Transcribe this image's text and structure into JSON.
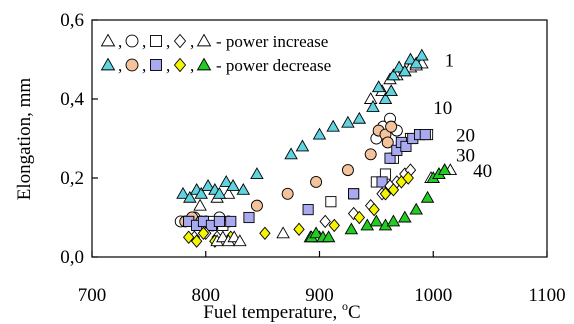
{
  "chart_data": {
    "type": "scatter",
    "title": "",
    "xlabel": "Fuel temperature, ",
    "xlabel_unit": "C",
    "xlabel_degree": "o",
    "ylabel": "Elongation, mm",
    "xlim": [
      700,
      1100
    ],
    "ylim": [
      0.0,
      0.6
    ],
    "x_ticks": [
      700,
      800,
      900,
      1000,
      1100
    ],
    "x_tick_labels": [
      "700",
      "800",
      "900",
      "1000",
      "1100"
    ],
    "y_ticks": [
      0.0,
      0.2,
      0.4,
      0.6
    ],
    "y_tick_labels": [
      "0,0",
      "0,2",
      "0,4",
      "0,6"
    ],
    "grid": false,
    "legend": {
      "placement": "top-left",
      "rows": [
        {
          "markers": [
            {
              "shape": "triangle",
              "fill": "#ffffff"
            },
            {
              "shape": "circle",
              "fill": "#ffffff"
            },
            {
              "shape": "square",
              "fill": "#ffffff"
            },
            {
              "shape": "diamond",
              "fill": "#ffffff"
            },
            {
              "shape": "triangle",
              "fill": "#ffffff"
            }
          ],
          "text": "- power increase"
        },
        {
          "markers": [
            {
              "shape": "triangle",
              "fill": "#5fd3e0"
            },
            {
              "shape": "circle",
              "fill": "#f5c39b"
            },
            {
              "shape": "square",
              "fill": "#a9a9f0"
            },
            {
              "shape": "diamond",
              "fill": "#f5f500"
            },
            {
              "shape": "triangle",
              "fill": "#22cc22"
            }
          ],
          "text": "- power decrease"
        }
      ],
      "separator": ","
    },
    "series": [
      {
        "name": "1",
        "shape": "triangle",
        "stroke": "#000000",
        "increase_fill": "#ffffff",
        "decrease_fill": "#5fd3e0",
        "increase": [
          [
            795,
            0.13
          ],
          [
            810,
            0.15
          ],
          [
            820,
            0.16
          ],
          [
            945,
            0.4
          ],
          [
            955,
            0.42
          ],
          [
            962,
            0.45
          ],
          [
            968,
            0.46
          ],
          [
            975,
            0.47
          ],
          [
            980,
            0.48
          ],
          [
            985,
            0.485
          ],
          [
            990,
            0.49
          ]
        ],
        "decrease": [
          [
            780,
            0.16
          ],
          [
            786,
            0.15
          ],
          [
            792,
            0.17
          ],
          [
            796,
            0.16
          ],
          [
            802,
            0.18
          ],
          [
            808,
            0.17
          ],
          [
            812,
            0.16
          ],
          [
            818,
            0.19
          ],
          [
            824,
            0.18
          ],
          [
            833,
            0.17
          ],
          [
            845,
            0.21
          ],
          [
            875,
            0.26
          ],
          [
            885,
            0.28
          ],
          [
            900,
            0.31
          ],
          [
            912,
            0.33
          ],
          [
            925,
            0.34
          ],
          [
            935,
            0.35
          ],
          [
            947,
            0.38
          ],
          [
            952,
            0.43
          ],
          [
            958,
            0.4
          ],
          [
            963,
            0.42
          ],
          [
            965,
            0.46
          ],
          [
            970,
            0.48
          ],
          [
            975,
            0.47
          ],
          [
            980,
            0.5
          ],
          [
            985,
            0.49
          ],
          [
            990,
            0.51
          ]
        ]
      },
      {
        "name": "10",
        "shape": "circle",
        "stroke": "#000000",
        "increase_fill": "#ffffff",
        "decrease_fill": "#f5c39b",
        "increase": [
          [
            778,
            0.09
          ],
          [
            790,
            0.1
          ],
          [
            800,
            0.09
          ],
          [
            812,
            0.1
          ],
          [
            950,
            0.3
          ],
          [
            956,
            0.33
          ],
          [
            962,
            0.35
          ],
          [
            968,
            0.32
          ]
        ],
        "decrease": [
          [
            782,
            0.09
          ],
          [
            788,
            0.1
          ],
          [
            796,
            0.09
          ],
          [
            806,
            0.08
          ],
          [
            820,
            0.09
          ],
          [
            845,
            0.13
          ],
          [
            872,
            0.16
          ],
          [
            897,
            0.19
          ],
          [
            925,
            0.22
          ],
          [
            945,
            0.26
          ],
          [
            952,
            0.32
          ],
          [
            958,
            0.31
          ],
          [
            963,
            0.33
          ],
          [
            960,
            0.29
          ]
        ]
      },
      {
        "name": "20",
        "shape": "square",
        "stroke": "#000000",
        "increase_fill": "#ffffff",
        "decrease_fill": "#a9a9f0",
        "increase": [
          [
            785,
            0.09
          ],
          [
            795,
            0.08
          ],
          [
            805,
            0.09
          ],
          [
            815,
            0.08
          ],
          [
            910,
            0.14
          ],
          [
            930,
            0.16
          ],
          [
            950,
            0.19
          ],
          [
            958,
            0.21
          ],
          [
            965,
            0.25
          ],
          [
            972,
            0.28
          ],
          [
            980,
            0.3
          ],
          [
            988,
            0.31
          ],
          [
            995,
            0.31
          ]
        ],
        "decrease": [
          [
            785,
            0.09
          ],
          [
            792,
            0.08
          ],
          [
            798,
            0.09
          ],
          [
            805,
            0.08
          ],
          [
            812,
            0.09
          ],
          [
            822,
            0.09
          ],
          [
            838,
            0.1
          ],
          [
            890,
            0.12
          ],
          [
            930,
            0.16
          ],
          [
            955,
            0.19
          ],
          [
            962,
            0.25
          ],
          [
            968,
            0.27
          ],
          [
            972,
            0.29
          ],
          [
            976,
            0.28
          ],
          [
            982,
            0.3
          ],
          [
            988,
            0.31
          ],
          [
            993,
            0.31
          ]
        ]
      },
      {
        "name": "30",
        "shape": "diamond",
        "stroke": "#000000",
        "increase_fill": "#ffffff",
        "decrease_fill": "#f5f500",
        "increase": [
          [
            790,
            0.05
          ],
          [
            800,
            0.06
          ],
          [
            810,
            0.05
          ],
          [
            905,
            0.09
          ],
          [
            930,
            0.11
          ],
          [
            945,
            0.13
          ],
          [
            955,
            0.16
          ],
          [
            962,
            0.18
          ],
          [
            968,
            0.19
          ],
          [
            975,
            0.21
          ],
          [
            980,
            0.22
          ]
        ],
        "decrease": [
          [
            785,
            0.05
          ],
          [
            792,
            0.04
          ],
          [
            798,
            0.06
          ],
          [
            808,
            0.04
          ],
          [
            822,
            0.05
          ],
          [
            852,
            0.06
          ],
          [
            882,
            0.07
          ],
          [
            913,
            0.08
          ],
          [
            935,
            0.1
          ],
          [
            948,
            0.12
          ],
          [
            958,
            0.16
          ],
          [
            965,
            0.17
          ],
          [
            972,
            0.19
          ],
          [
            978,
            0.2
          ]
        ]
      },
      {
        "name": "40",
        "shape": "triangle",
        "stroke": "#000000",
        "increase_fill": "#ffffff",
        "decrease_fill": "#22cc22",
        "increase": [
          [
            810,
            0.04
          ],
          [
            815,
            0.05
          ],
          [
            820,
            0.04
          ],
          [
            825,
            0.05
          ],
          [
            830,
            0.04
          ],
          [
            868,
            0.06
          ],
          [
            892,
            0.05
          ],
          [
            900,
            0.05
          ],
          [
            998,
            0.2
          ],
          [
            1005,
            0.21
          ],
          [
            1010,
            0.22
          ],
          [
            1015,
            0.22
          ]
        ],
        "decrease": [
          [
            893,
            0.05
          ],
          [
            897,
            0.06
          ],
          [
            903,
            0.05
          ],
          [
            908,
            0.05
          ],
          [
            928,
            0.07
          ],
          [
            942,
            0.08
          ],
          [
            950,
            0.09
          ],
          [
            958,
            0.08
          ],
          [
            965,
            0.09
          ],
          [
            975,
            0.1
          ],
          [
            985,
            0.12
          ],
          [
            995,
            0.15
          ],
          [
            1000,
            0.2
          ],
          [
            1005,
            0.21
          ],
          [
            1010,
            0.22
          ]
        ]
      }
    ]
  }
}
